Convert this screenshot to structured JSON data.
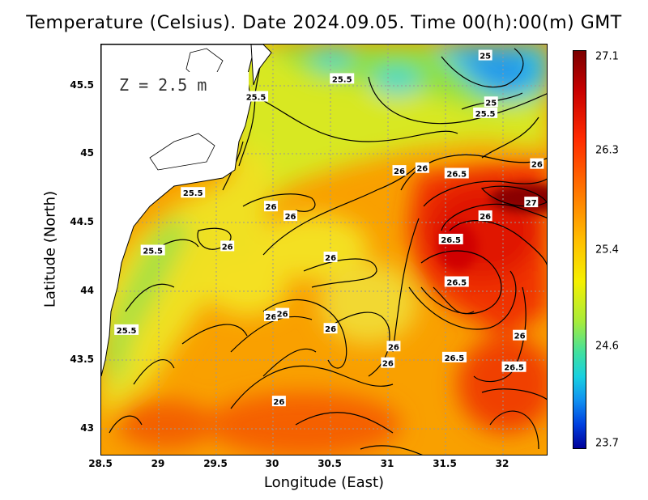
{
  "title": "Temperature (Celsius). Date 2024.09.05. Time 00(h):00(m) GMT",
  "depth_label": "Z = 2.5 m",
  "axes": {
    "xlabel": "Longitude (East)",
    "ylabel": "Latitude (North)",
    "xlim": [
      28.5,
      32.4
    ],
    "ylim": [
      42.8,
      45.8
    ],
    "xticks": [
      "28.5",
      "29",
      "29.5",
      "30",
      "30.5",
      "31",
      "31.5",
      "32"
    ],
    "yticks": [
      "45.5",
      "45",
      "44.5",
      "44",
      "43.5",
      "43"
    ]
  },
  "colorbar": {
    "ticks": [
      "27.1",
      "26.3",
      "25.4",
      "24.6",
      "23.7"
    ],
    "colors": [
      "#7a0000",
      "#c80000",
      "#ff2a00",
      "#ff7a00",
      "#ffc000",
      "#f5f000",
      "#a8ec3a",
      "#40e0a0",
      "#18d0e0",
      "#1090f0",
      "#0040e0",
      "#00009a"
    ]
  },
  "contour_labels": [
    {
      "text": "25",
      "lon": 31.85,
      "lat": 45.72
    },
    {
      "text": "25.5",
      "lon": 30.6,
      "lat": 45.55
    },
    {
      "text": "25.5",
      "lon": 29.85,
      "lat": 45.42
    },
    {
      "text": "25",
      "lon": 31.9,
      "lat": 45.38
    },
    {
      "text": "25.5",
      "lon": 31.85,
      "lat": 45.3
    },
    {
      "text": "26",
      "lon": 32.3,
      "lat": 44.93
    },
    {
      "text": "26",
      "lon": 31.1,
      "lat": 44.88
    },
    {
      "text": "26",
      "lon": 31.3,
      "lat": 44.9
    },
    {
      "text": "26.5",
      "lon": 31.6,
      "lat": 44.86
    },
    {
      "text": "25.5",
      "lon": 29.3,
      "lat": 44.72
    },
    {
      "text": "27",
      "lon": 32.25,
      "lat": 44.65
    },
    {
      "text": "26",
      "lon": 29.98,
      "lat": 44.62
    },
    {
      "text": "26",
      "lon": 30.15,
      "lat": 44.55
    },
    {
      "text": "26",
      "lon": 31.85,
      "lat": 44.55
    },
    {
      "text": "26.5",
      "lon": 31.55,
      "lat": 44.38
    },
    {
      "text": "26",
      "lon": 29.6,
      "lat": 44.33
    },
    {
      "text": "25.5",
      "lon": 28.95,
      "lat": 44.3
    },
    {
      "text": "26",
      "lon": 30.5,
      "lat": 44.25
    },
    {
      "text": "26.5",
      "lon": 31.6,
      "lat": 44.07
    },
    {
      "text": "26",
      "lon": 29.98,
      "lat": 43.82
    },
    {
      "text": "26",
      "lon": 30.08,
      "lat": 43.84
    },
    {
      "text": "25.5",
      "lon": 28.72,
      "lat": 43.72
    },
    {
      "text": "26",
      "lon": 30.5,
      "lat": 43.73
    },
    {
      "text": "26",
      "lon": 32.15,
      "lat": 43.68
    },
    {
      "text": "26",
      "lon": 31.05,
      "lat": 43.6
    },
    {
      "text": "26.5",
      "lon": 31.58,
      "lat": 43.52
    },
    {
      "text": "26",
      "lon": 31.0,
      "lat": 43.48
    },
    {
      "text": "26.5",
      "lon": 32.1,
      "lat": 43.45
    },
    {
      "text": "26",
      "lon": 30.05,
      "lat": 43.2
    }
  ]
}
